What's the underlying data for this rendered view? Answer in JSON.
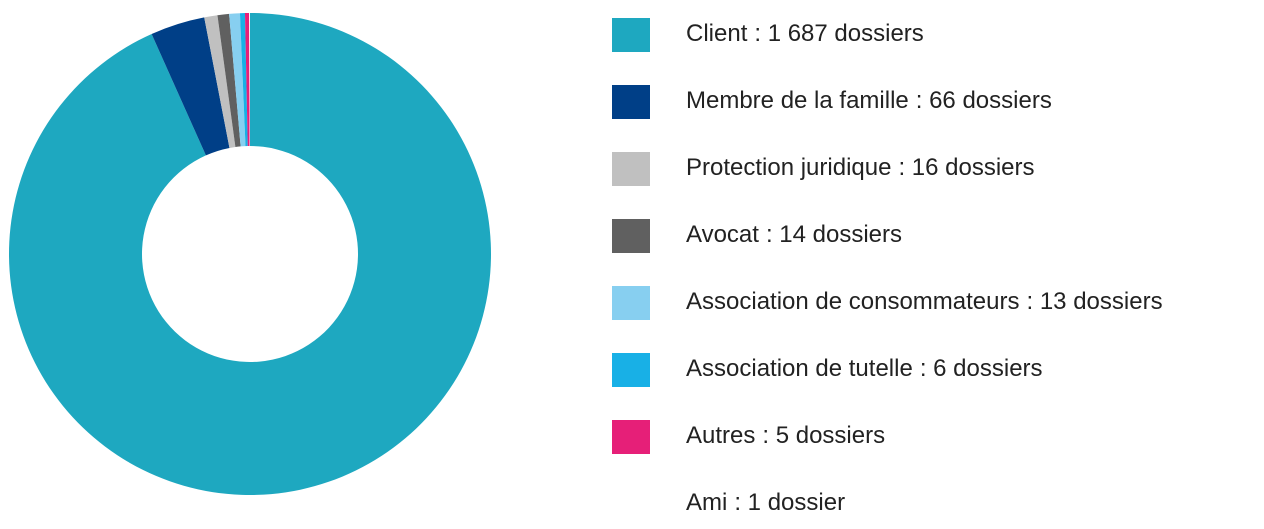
{
  "chart_data": {
    "type": "pie",
    "categories": [
      "Client",
      "Membre de la famille",
      "Protection juridique",
      "Avocat",
      "Association de consommateurs",
      "Association de tutelle",
      "Autres",
      "Ami"
    ],
    "values": [
      1687,
      66,
      16,
      14,
      13,
      6,
      5,
      1
    ],
    "value_labels": [
      ": 1 687 dossiers",
      ": 66 dossiers",
      ": 16 dossiers",
      ": 14 dossiers",
      ": 13 dossiers",
      ": 6 dossiers",
      ": 5 dossiers",
      ": 1 dossier"
    ],
    "colors": [
      "#1ea8c0",
      "#003f87",
      "#c0c0c0",
      "#606060",
      "#87cff0",
      "#18b0e6",
      "#e61f78",
      "#ffffff"
    ],
    "legend": "right"
  }
}
